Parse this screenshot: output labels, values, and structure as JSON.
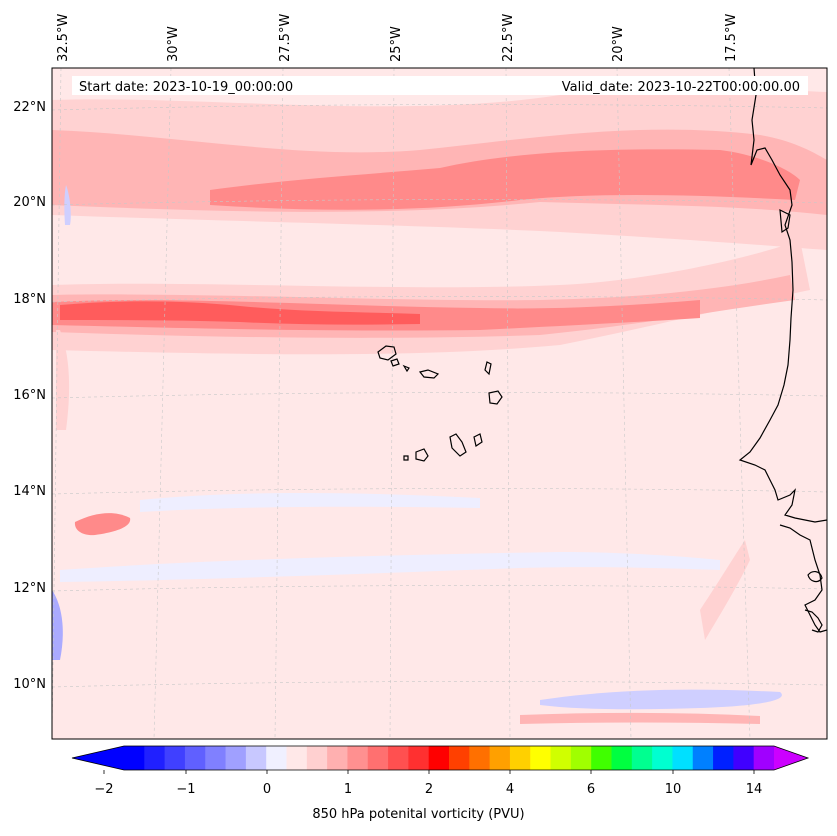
{
  "map": {
    "start_date_label": "Start date: 2023-10-19_00:00:00",
    "valid_date_label": "Valid_date: 2023-10-22T00:00:00.00",
    "lon_labels": [
      "32.5°W",
      "30°W",
      "27.5°W",
      "25°W",
      "22.5°W",
      "20°W",
      "17.5°W"
    ],
    "lat_labels": [
      "22°N",
      "20°N",
      "18°N",
      "16°N",
      "14°N",
      "12°N",
      "10°N"
    ],
    "extent": {
      "lon_min": -33.0,
      "lon_max": -15.5,
      "lat_min": 8.9,
      "lat_max": 22.8
    },
    "colors": {
      "background_field": "#ffe8e8",
      "band_light": "#ffd2d2",
      "band_mid": "#ffb5b5",
      "band_strong": "#ff8a8a",
      "band_peak": "#ff5c5c",
      "negative_light": "#eeeeff",
      "negative_mid": "#cfcfff",
      "negative_strong": "#aaaaff",
      "coastline": "#000000",
      "gridline": "#c8c8c8"
    }
  },
  "colorbar": {
    "label": "850 hPa potenital vorticity (PVU)",
    "tick_labels": [
      "−2",
      "−1",
      "0",
      "1",
      "2",
      "4",
      "6",
      "10",
      "14"
    ],
    "colors": [
      "#0000ff",
      "#2020ff",
      "#4040ff",
      "#6060ff",
      "#8080ff",
      "#a0a0ff",
      "#c8c8ff",
      "#f0f0ff",
      "#ffe8e8",
      "#ffd0d0",
      "#ffb0b0",
      "#ff9090",
      "#ff7070",
      "#ff5050",
      "#ff3030",
      "#ff0000",
      "#ff4000",
      "#ff7000",
      "#ffa000",
      "#ffd000",
      "#ffff00",
      "#d0ff00",
      "#a0ff00",
      "#40ff00",
      "#00ff40",
      "#00ff90",
      "#00ffd0",
      "#00e0ff",
      "#0080ff",
      "#0020ff",
      "#4000ff",
      "#a000ff"
    ],
    "under_color": "#0000ff",
    "over_color": "#cc00ff"
  }
}
